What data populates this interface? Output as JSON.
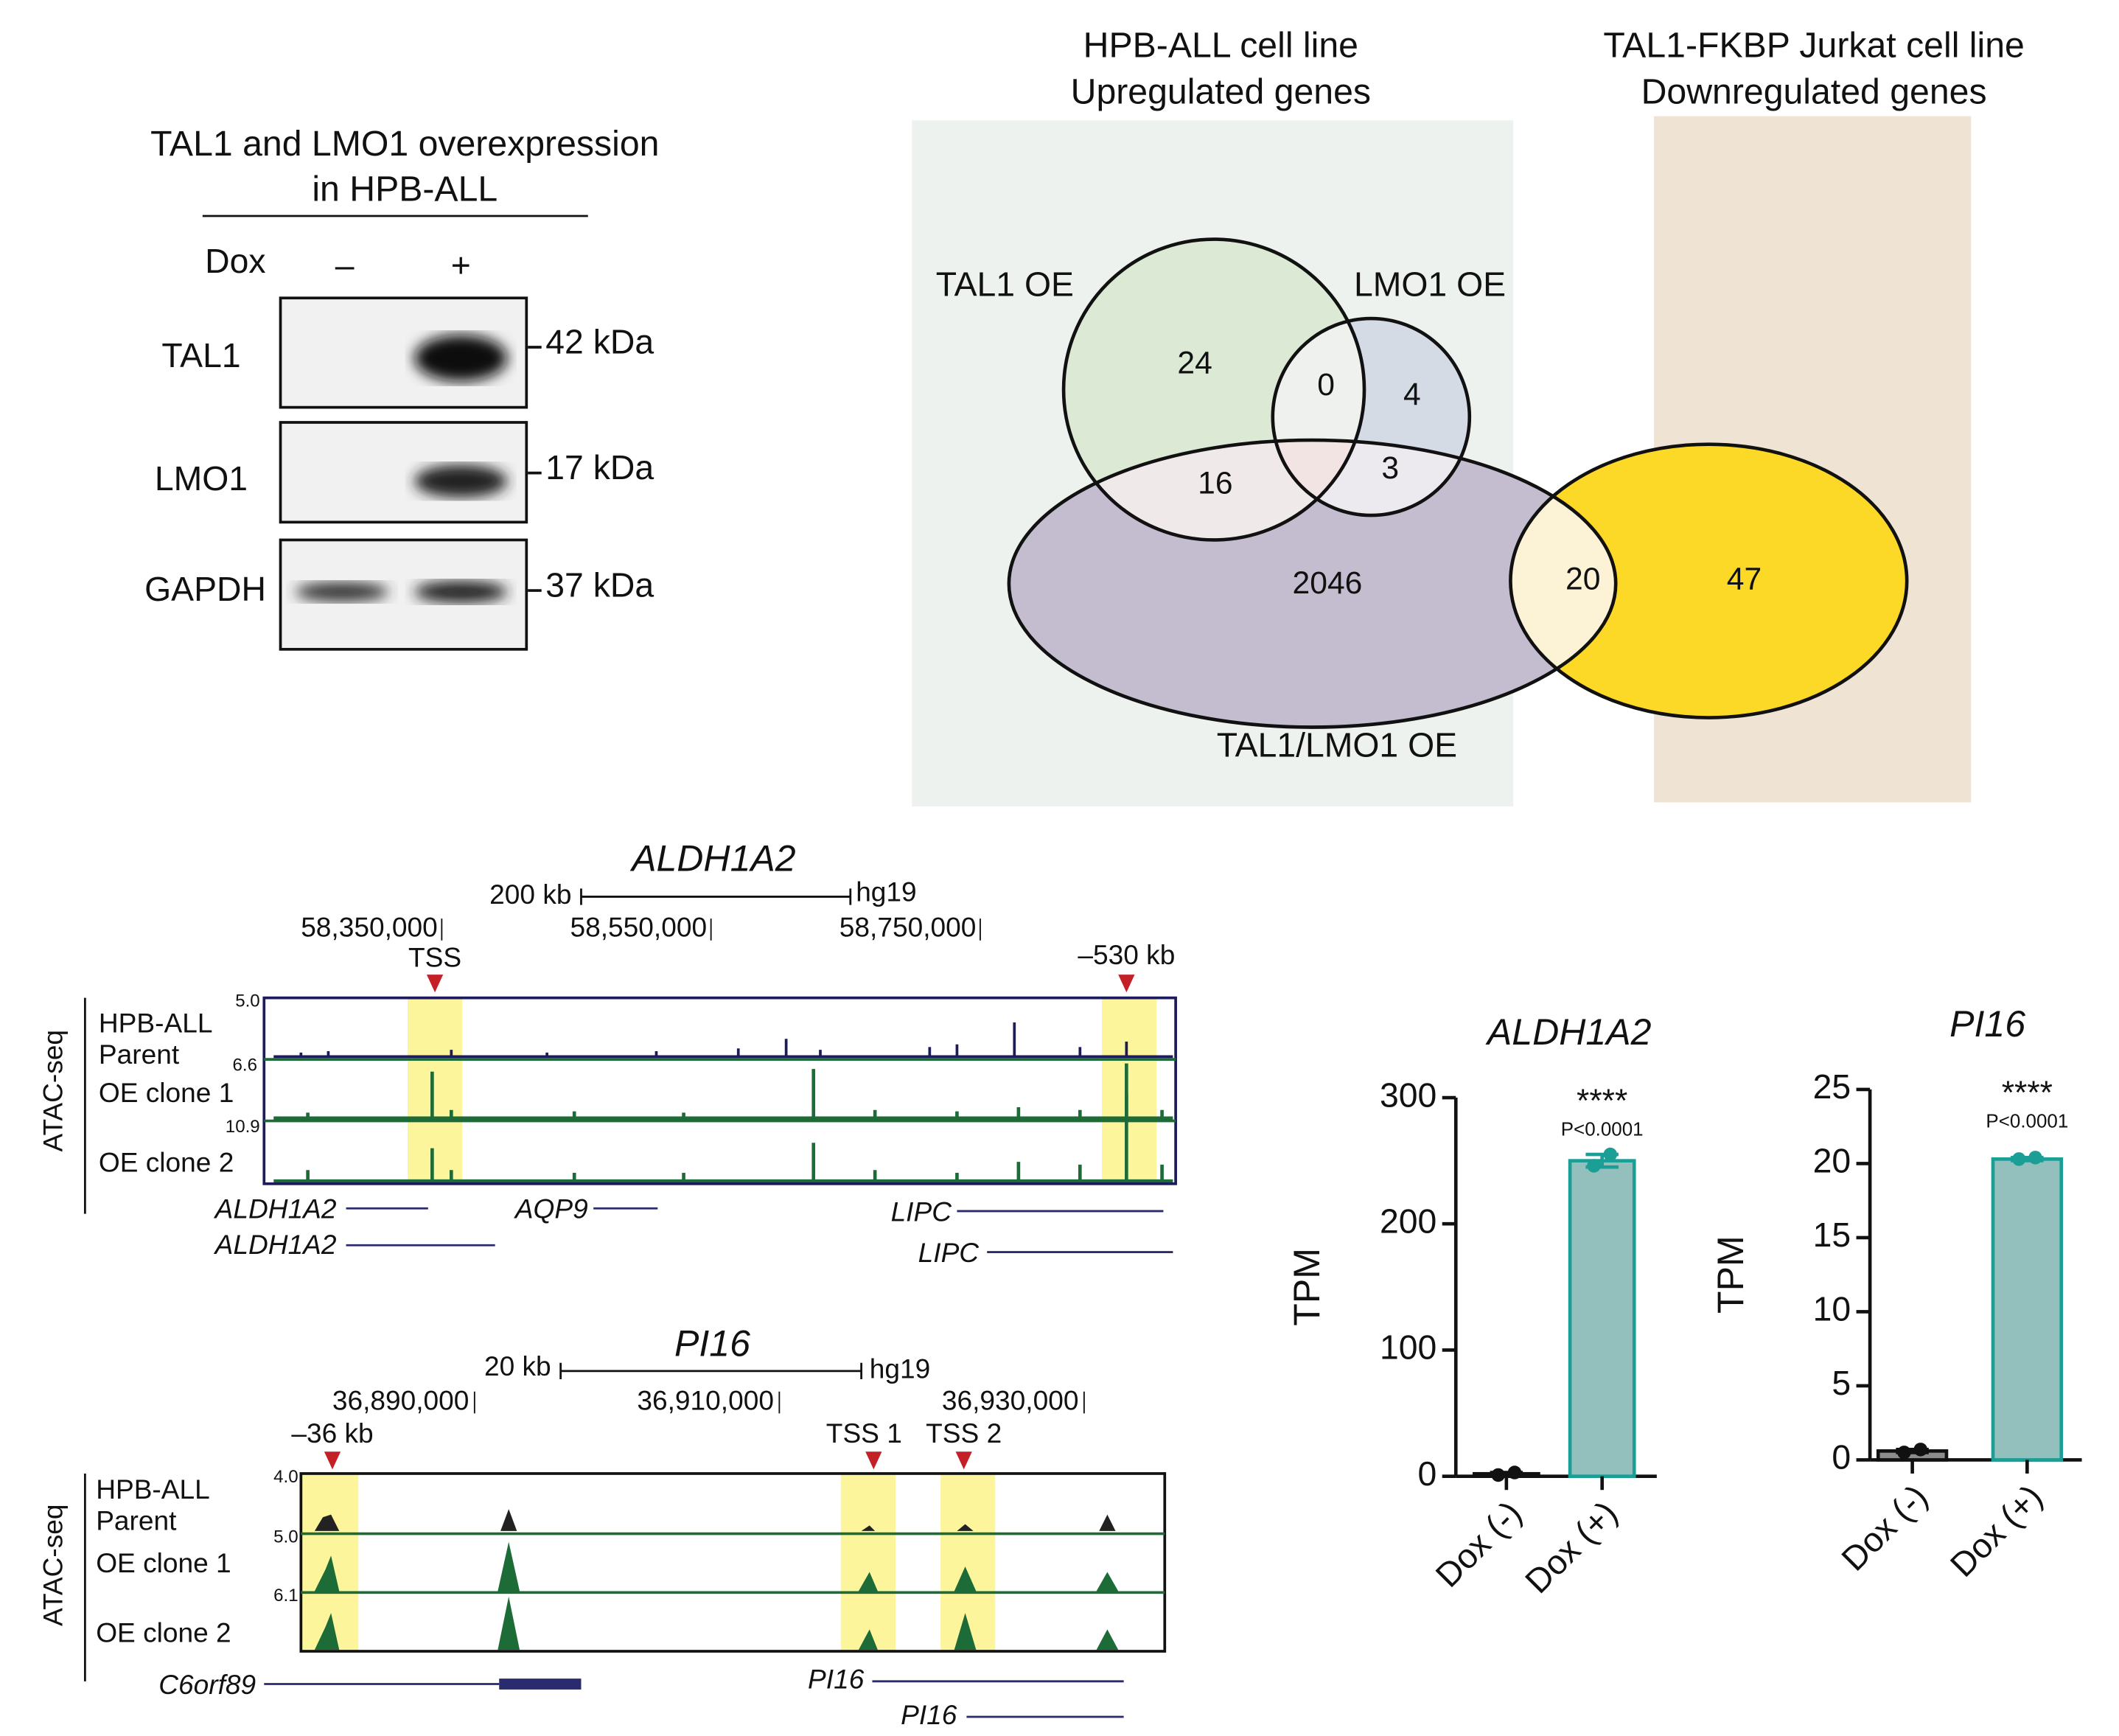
{
  "western_blot": {
    "title": [
      "TAL1 and LMO1 overexpression",
      "in HPB-ALL"
    ],
    "condition": "Dox",
    "lanes": [
      "–",
      "+"
    ],
    "rows": [
      {
        "protein": "TAL1",
        "size": "42 kDa"
      },
      {
        "protein": "LMO1",
        "size": "17 kDa"
      },
      {
        "protein": "GAPDH",
        "size": "37 kDa"
      }
    ]
  },
  "venn": {
    "headers": [
      [
        "HPB-ALL cell line",
        "Upregulated genes"
      ],
      [
        "TAL1-FKBP Jurkat cell line",
        "Downregulated genes"
      ]
    ],
    "sets": [
      "TAL1 OE",
      "LMO1 OE",
      "TAL1/LMO1 OE"
    ],
    "counts": [
      24,
      0,
      4,
      16,
      3,
      2046,
      20,
      47
    ]
  },
  "tracks": [
    {
      "gene": "ALDH1A2",
      "scale": "200 kb",
      "genome": "hg19",
      "coordinates": [
        "58,350,000",
        "58,550,000",
        "58,750,000"
      ],
      "markers": [
        "TSS",
        "–530 kb"
      ],
      "assay": "ATAC-seq",
      "samples": [
        {
          "name": [
            "HPB-ALL",
            "Parent"
          ],
          "max": "5.0"
        },
        {
          "name": [
            "OE clone 1"
          ],
          "max": "6.6"
        },
        {
          "name": [
            "OE clone 2"
          ],
          "max": "10.9"
        }
      ],
      "genes": [
        "ALDH1A2",
        "ALDH1A2",
        "AQP9",
        "LIPC",
        "LIPC"
      ]
    },
    {
      "gene": "PI16",
      "scale": "20 kb",
      "genome": "hg19",
      "coordinates": [
        "36,890,000",
        "36,910,000",
        "36,930,000"
      ],
      "markers": [
        "–36 kb",
        "TSS 1",
        "TSS 2"
      ],
      "assay": "ATAC-seq",
      "samples": [
        {
          "name": [
            "HPB-ALL",
            "Parent"
          ],
          "max": "4.0"
        },
        {
          "name": [
            "OE clone 1"
          ],
          "max": "5.0"
        },
        {
          "name": [
            "OE clone 2"
          ],
          "max": "6.1"
        }
      ],
      "genes": [
        "C6orf89",
        "PI16",
        "PI16"
      ]
    }
  ],
  "chart_data": [
    {
      "type": "bar",
      "title": "ALDH1A2",
      "ylabel": "TPM",
      "categories": [
        "Dox (-)",
        "Dox (+)"
      ],
      "values": [
        2,
        250
      ],
      "errors": [
        1,
        5
      ],
      "points": [
        [
          1,
          3
        ],
        [
          246,
          255
        ]
      ],
      "colors": [
        "#8c8c8c",
        "#93c0bd"
      ],
      "edge_colors": [
        "#111111",
        "#1a9e96"
      ],
      "ylim": [
        0,
        300
      ],
      "yticks": [
        0,
        100,
        200,
        300
      ],
      "annotations": [
        "****",
        "P<0.0001"
      ]
    },
    {
      "type": "bar",
      "title": "PI16",
      "ylabel": "TPM",
      "categories": [
        "Dox (-)",
        "Dox (+)"
      ],
      "values": [
        0.6,
        20.3
      ],
      "errors": [
        0.1,
        0.1
      ],
      "points": [
        [
          0.5,
          0.7
        ],
        [
          20.3,
          20.4
        ]
      ],
      "colors": [
        "#8c8c8c",
        "#93c0bd"
      ],
      "edge_colors": [
        "#111111",
        "#1a9e96"
      ],
      "ylim": [
        0,
        25
      ],
      "yticks": [
        0,
        5,
        10,
        15,
        20,
        25
      ],
      "annotations": [
        "****",
        "P<0.0001"
      ]
    }
  ]
}
